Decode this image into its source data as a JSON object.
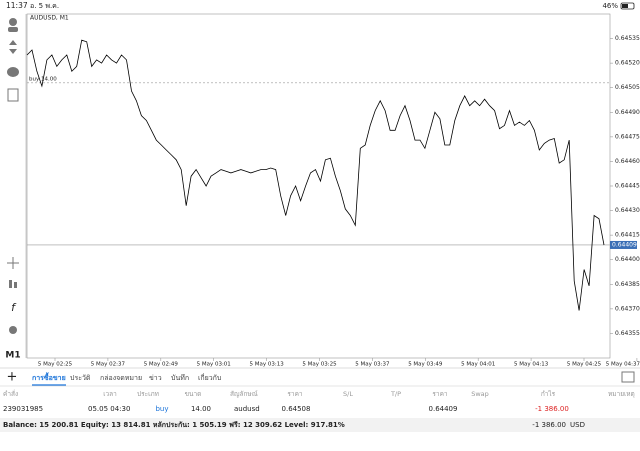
{
  "status_bar": {
    "time": "11:37",
    "date": "อ. 5 พ.ค.",
    "battery": "46%"
  },
  "toolbar": {
    "timeframe": "M1"
  },
  "chart": {
    "type": "line",
    "title": "AUDUSD, M1",
    "color": "#000000",
    "values": [
      0.64525,
      0.64528,
      0.64515,
      0.64506,
      0.64522,
      0.64525,
      0.64518,
      0.64522,
      0.64525,
      0.64515,
      0.64518,
      0.64534,
      0.64533,
      0.64518,
      0.64522,
      0.6452,
      0.64525,
      0.64522,
      0.6452,
      0.64525,
      0.64522,
      0.64503,
      0.64497,
      0.64488,
      0.64485,
      0.64479,
      0.64473,
      0.6447,
      0.64467,
      0.64464,
      0.64461,
      0.64455,
      0.64433,
      0.64451,
      0.64455,
      0.6445,
      0.64445,
      0.64451,
      0.64453,
      0.64455,
      0.64454,
      0.64453,
      0.64454,
      0.64455,
      0.64454,
      0.64453,
      0.64454,
      0.64455,
      0.64455,
      0.64456,
      0.64455,
      0.64439,
      0.64427,
      0.64439,
      0.64445,
      0.64436,
      0.64445,
      0.64453,
      0.64455,
      0.64448,
      0.64461,
      0.64462,
      0.64451,
      0.64442,
      0.64431,
      0.64427,
      0.64421,
      0.64468,
      0.6447,
      0.64482,
      0.64491,
      0.64497,
      0.64491,
      0.64479,
      0.64479,
      0.64488,
      0.64494,
      0.64485,
      0.64473,
      0.64473,
      0.64468,
      0.64479,
      0.6449,
      0.64486,
      0.6447,
      0.6447,
      0.64485,
      0.64494,
      0.645,
      0.64494,
      0.64497,
      0.64494,
      0.64498,
      0.64494,
      0.64491,
      0.6448,
      0.64482,
      0.64491,
      0.64482,
      0.64484,
      0.64482,
      0.64485,
      0.64479,
      0.64467,
      0.64471,
      0.64473,
      0.64474,
      0.64459,
      0.64461,
      0.64473,
      0.64387,
      0.64369,
      0.64394,
      0.64384,
      0.64427,
      0.64425,
      0.64409
    ],
    "ylim": [
      0.6434,
      0.6455
    ],
    "yticks": [
      0.64535,
      {
        "value": 0.6452,
        "label": "0.64520"
      },
      0.64505,
      {
        "value": 0.6449,
        "label": "0.64490"
      },
      0.64475,
      {
        "value": 0.6446,
        "label": "0.64460"
      },
      0.64445,
      {
        "value": 0.6443,
        "label": "0.64430"
      },
      0.64415,
      {
        "value": 0.644,
        "label": "0.64400"
      },
      0.64385,
      {
        "value": 0.6437,
        "label": "0.64370"
      },
      0.64355
    ],
    "xtick_labels": [
      "5 May 02:25",
      "5 May 02:37",
      "5 May 02:49",
      "5 May 03:01",
      "5 May 03:13",
      "5 May 03:25",
      "5 May 03:37",
      "5 May 03:49",
      "5 May 04:01",
      "5 May 04:13",
      "5 May 04:25",
      "5 May 04:37"
    ],
    "current_price": 0.64409,
    "order_line": {
      "label": "buy 14.00",
      "value": 0.64508
    }
  },
  "tabs": [
    "การซื้อขาย",
    "ประวัติ",
    "กล่องจดหมาย",
    "ข่าว",
    "บันทึก",
    "เกี่ยวกับ"
  ],
  "active_tab": 0,
  "table": {
    "header": [
      "คำสั่ง",
      "เวลา",
      "ประเภท",
      "ขนาด",
      "สัญลักษณ์",
      "ราคา",
      "S/L",
      "T/P",
      "ราคา",
      "Swap",
      "กำไร",
      "หมายเหตุ"
    ],
    "rows": [
      {
        "order": "239031985",
        "time": "05.05 04:30",
        "type": "buy",
        "volume": "14.00",
        "symbol": "audusd",
        "open_price": "0.64508",
        "price": "0.64409",
        "profit": "-1 386.00"
      }
    ]
  },
  "footer": {
    "summary": "Balance: 15 200.81 Equity: 13 814.81 หลักประกัน: 1 505.19 ฟรี: 12 309.62 Level: 917.81%",
    "profit": "-1 386.00",
    "currency": "USD"
  }
}
